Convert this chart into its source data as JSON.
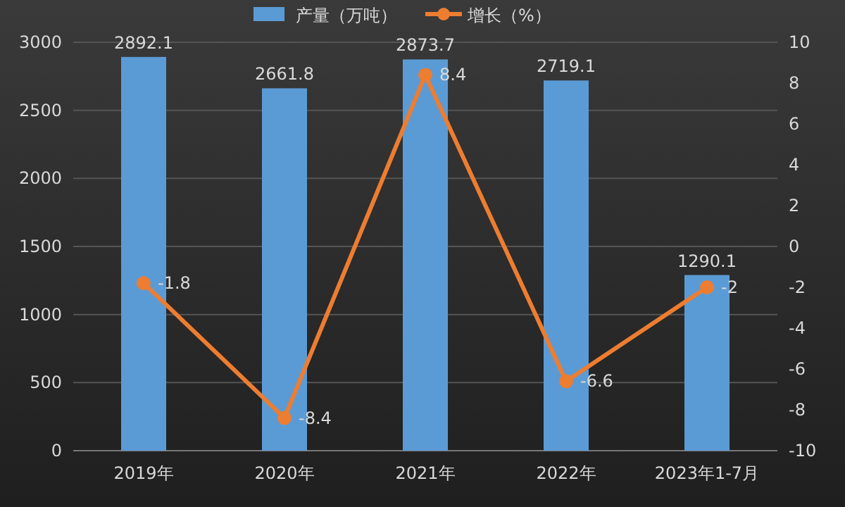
{
  "chart_data": {
    "type": "bar",
    "categories": [
      "2019年",
      "2020年",
      "2021年",
      "2022年",
      "2023年1-7月"
    ],
    "series": [
      {
        "name": "产量（万吨）",
        "color": "#5b9bd5",
        "values": [
          2892.1,
          2661.8,
          2873.7,
          2719.1,
          1290.1
        ]
      },
      {
        "name": "增长（%）",
        "type": "line",
        "axis": "y2",
        "color": "#ed7d31",
        "marker": "circle",
        "values": [
          -1.8,
          -8.4,
          8.4,
          -6.6,
          -2
        ]
      }
    ],
    "ylim": [
      0,
      3000
    ],
    "yticks": [
      0,
      500,
      1000,
      1500,
      2000,
      2500,
      3000
    ],
    "y2lim": [
      -10,
      10
    ],
    "y2ticks": [
      -10,
      -8,
      -6,
      -4,
      -2,
      0,
      2,
      4,
      6,
      8,
      10
    ],
    "grid": "y",
    "legend": "top",
    "data_labels": true
  }
}
